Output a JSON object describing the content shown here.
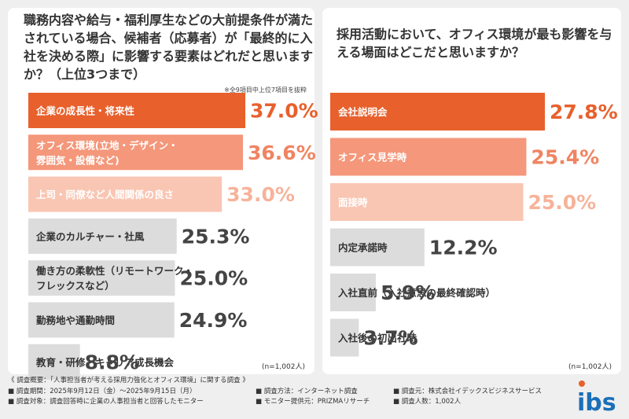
{
  "left": {
    "question": "職務内容や給与・福利厚生などの大前提条件が満たされている場合、候補者（応募者）が「最終的に入社を決める際」に影響する要素はどれだと思いますか？（上位3つまで）",
    "note": "※全9項目中上位7項目を抜粋",
    "n_note": "(n=1,002人)"
  },
  "right": {
    "question": "採用活動において、オフィス環境が最も影響を与える場面はどこだと思いますか？",
    "n_note": "(n=1,002人)"
  },
  "colors": {
    "rank1": "#e8602c",
    "rank2": "#f4977a",
    "rank3": "#f9c6b3",
    "other": "#dcdcdc",
    "value_rank1": "#e8602c",
    "value_rank2": "#f08462",
    "value_rank3": "#f6b39a",
    "value_other": "#444444"
  },
  "chart_data": [
    {
      "type": "bar",
      "orientation": "horizontal",
      "categories": [
        "企業の成長性・将来性",
        "オフィス環境(立地・デザイン・雰囲気・設備など)",
        "上司・同僚など人間関係の良さ",
        "企業のカルチャー・社風",
        "働き方の柔軟性（リモートワーク・フレックスなど）",
        "勤務地や通勤時間",
        "教育・研修・キャリア成長機会"
      ],
      "category_lines": [
        [
          "企業の成長性・将来性"
        ],
        [
          "オフィス環境(立地・デザイン・",
          "雰囲気・設備など)"
        ],
        [
          "上司・同僚など人間関係の良さ"
        ],
        [
          "企業のカルチャー・社風"
        ],
        [
          "働き方の柔軟性（リモートワーク・",
          "フレックスなど）"
        ],
        [
          "勤務地や通勤時間"
        ],
        [
          "教育・研修・キャリア成長機会"
        ]
      ],
      "values": [
        37.0,
        36.6,
        33.0,
        25.3,
        25.0,
        24.9,
        8.8
      ],
      "value_labels": [
        "37.0%",
        "36.6%",
        "33.0%",
        "25.3%",
        "25.0%",
        "24.9%",
        "8.8%"
      ],
      "unit": "%",
      "xlim": [
        0,
        37.0
      ],
      "grid": false,
      "legend": "none"
    },
    {
      "type": "bar",
      "orientation": "horizontal",
      "categories": [
        "会社説明会",
        "オフィス見学時",
        "面接時",
        "内定承諾時",
        "入社直前（入社意思の最終確認時）",
        "入社後の初出社時"
      ],
      "category_lines": [
        [
          "会社説明会"
        ],
        [
          "オフィス見学時"
        ],
        [
          "面接時"
        ],
        [
          "内定承諾時"
        ],
        [
          "入社直前（入社意思の最終確認時）"
        ],
        [
          "入社後の初出社時"
        ]
      ],
      "values": [
        27.8,
        25.4,
        25.0,
        12.2,
        5.9,
        3.7
      ],
      "value_labels": [
        "27.8%",
        "25.4%",
        "25.0%",
        "12.2%",
        "5.9%",
        "3.7%"
      ],
      "unit": "%",
      "xlim": [
        0,
        27.8
      ],
      "grid": false,
      "legend": "none"
    }
  ],
  "footer": {
    "summary": "《 調査概要：「人事担当者が考える採用力強化とオフィス環境」に関する調査 》",
    "period": "■ 調査期間：2025年9月12日（金）～2025年9月15日（月）",
    "method": "■ 調査方法：インターネット調査",
    "org": "■ 調査元：株式会社イデックスビジネスサービス",
    "target": "■ 調査対象：調査回答時に企業の人事担当者と回答したモニター",
    "provider": "■ モニター提供元：PRIZMAリサーチ",
    "count": "■ 調査人数：1,002人"
  },
  "logo": {
    "text": "ibs",
    "color": "#1b6fb8",
    "accent": "#e8602c"
  }
}
